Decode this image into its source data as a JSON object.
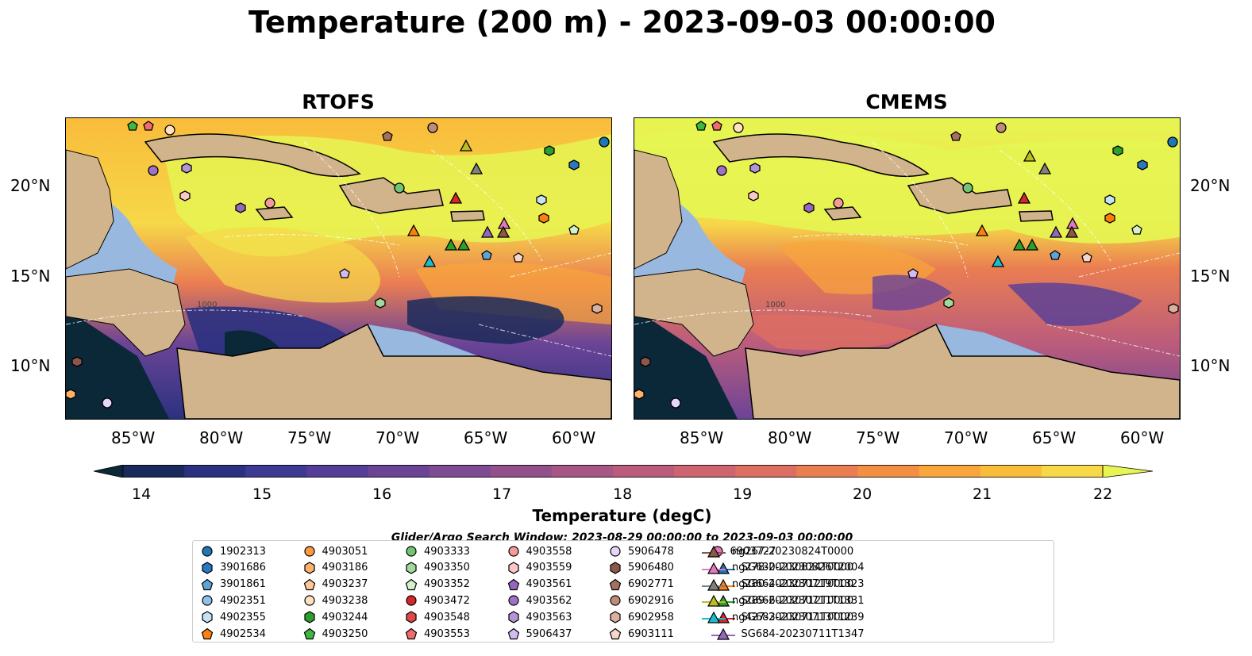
{
  "title": "Temperature (200 m) - 2023-09-03 00:00:00",
  "panels": [
    {
      "name": "RTOFS"
    },
    {
      "name": "CMEMS"
    }
  ],
  "lat_ticks": [
    "20°N",
    "15°N",
    "10°N"
  ],
  "lon_ticks": [
    "85°W",
    "80°W",
    "75°W",
    "70°W",
    "65°W",
    "60°W"
  ],
  "colorbar": {
    "ticks": [
      "14",
      "15",
      "16",
      "17",
      "18",
      "19",
      "20",
      "21",
      "22"
    ],
    "title": "Temperature (degC)",
    "range": [
      14,
      22
    ],
    "colors": [
      "#0b2838",
      "#1a2a5c",
      "#2b3180",
      "#3d3a93",
      "#553e98",
      "#6b4496",
      "#7f4b92",
      "#93518c",
      "#a75686",
      "#bb5c7c",
      "#cd6470",
      "#dd6e62",
      "#ea7d52",
      "#f38f44",
      "#f8a53c",
      "#f9bc3b",
      "#f6d848",
      "#e6f552"
    ]
  },
  "search_window": "Glider/Argo Search Window: 2023-08-29 00:00:00 to 2023-09-03 00:00:00",
  "legend": [
    {
      "label": "1902313",
      "shape": "circle",
      "color": "#1f77b4"
    },
    {
      "label": "3901686",
      "shape": "hexagon",
      "color": "#2a78c2"
    },
    {
      "label": "3901861",
      "shape": "pentagon",
      "color": "#5ea3d6"
    },
    {
      "label": "4902351",
      "shape": "circle",
      "color": "#8fc1ea"
    },
    {
      "label": "4902355",
      "shape": "hexagon",
      "color": "#c6e2f7"
    },
    {
      "label": "4902534",
      "shape": "pentagon",
      "color": "#ff7f0e"
    },
    {
      "label": "4903051",
      "shape": "circle",
      "color": "#ff9a3c"
    },
    {
      "label": "4903186",
      "shape": "hexagon",
      "color": "#ffb26b"
    },
    {
      "label": "4903237",
      "shape": "pentagon",
      "color": "#ffc898"
    },
    {
      "label": "4903238",
      "shape": "circle",
      "color": "#ffe0c0"
    },
    {
      "label": "4903244",
      "shape": "hexagon",
      "color": "#2ca02c"
    },
    {
      "label": "4903250",
      "shape": "pentagon",
      "color": "#3fb83f"
    },
    {
      "label": "4903333",
      "shape": "circle",
      "color": "#74c476"
    },
    {
      "label": "4903350",
      "shape": "hexagon",
      "color": "#a1d99b"
    },
    {
      "label": "4903352",
      "shape": "pentagon",
      "color": "#d4f0cc"
    },
    {
      "label": "4903472",
      "shape": "circle",
      "color": "#d62728"
    },
    {
      "label": "4903548",
      "shape": "hexagon",
      "color": "#e04848"
    },
    {
      "label": "4903553",
      "shape": "pentagon",
      "color": "#f06b6b"
    },
    {
      "label": "4903558",
      "shape": "circle",
      "color": "#f59a9a"
    },
    {
      "label": "4903559",
      "shape": "hexagon",
      "color": "#fac8c8"
    },
    {
      "label": "4903561",
      "shape": "pentagon",
      "color": "#9467bd"
    },
    {
      "label": "4903562",
      "shape": "circle",
      "color": "#9e72c6"
    },
    {
      "label": "4903563",
      "shape": "hexagon",
      "color": "#b394d8"
    },
    {
      "label": "5906437",
      "shape": "pentagon",
      "color": "#d2bbf0"
    },
    {
      "label": "5906478",
      "shape": "circle",
      "color": "#e6d6fa"
    },
    {
      "label": "5906480",
      "shape": "hexagon",
      "color": "#8c564b"
    },
    {
      "label": "6902771",
      "shape": "pentagon",
      "color": "#a6705f"
    },
    {
      "label": "6902916",
      "shape": "circle",
      "color": "#c08a78"
    },
    {
      "label": "6902958",
      "shape": "hexagon",
      "color": "#dcb0a0"
    },
    {
      "label": "6903111",
      "shape": "pentagon",
      "color": "#f6d6ca"
    },
    {
      "label": "6903727",
      "shape": "circle",
      "color": "#e377c2"
    },
    {
      "label": "SG630-20230826T2004",
      "shape": "triangle",
      "color": "#1f77b4"
    },
    {
      "label": "SG664-20230719T1323",
      "shape": "triangle",
      "color": "#ff7f0e"
    },
    {
      "label": "SG666-20230711T1331",
      "shape": "triangle",
      "color": "#2ca02c"
    },
    {
      "label": "SG683-20230713T1239",
      "shape": "triangle",
      "color": "#d62728"
    },
    {
      "label": "SG684-20230711T1347",
      "shape": "triangle",
      "color": "#9467bd"
    },
    {
      "label": "ng267-20230824T0000",
      "shape": "triangle",
      "color": "#8c564b"
    },
    {
      "label": "ng278-20230824T0000",
      "shape": "triangle",
      "color": "#e377c2"
    },
    {
      "label": "ng280-20230712T0000",
      "shape": "triangle",
      "color": "#7f7f7f"
    },
    {
      "label": "ng289-20230712T0000",
      "shape": "triangle",
      "color": "#bcbd22"
    },
    {
      "label": "ng427-20230711T0000",
      "shape": "triangle",
      "color": "#17becf"
    }
  ],
  "contour_label": "1000",
  "colors": {
    "land": "#d2b48c",
    "shelf": "#98b8e0",
    "warm": "#e6f552",
    "cool": "#2b3180"
  }
}
